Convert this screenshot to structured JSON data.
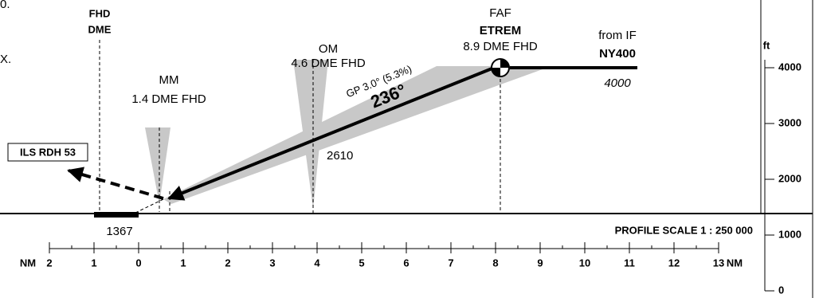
{
  "fragments": [
    "0.",
    "X."
  ],
  "fixes": {
    "fhd": {
      "line1": "FHD",
      "line2": "DME"
    },
    "mm": {
      "name": "MM",
      "dist": "1.4 DME FHD"
    },
    "om": {
      "name": "OM",
      "dist": "4.6 DME FHD",
      "alt": "2610"
    },
    "faf": {
      "label": "FAF",
      "name": "ETREM",
      "dist": "8.9 DME FHD"
    },
    "if": {
      "label": "from IF",
      "name": "NY400",
      "alt": "4000"
    }
  },
  "glidepath": {
    "angle": "GP 3.0° (5.3%)",
    "course": "236°"
  },
  "ils_rdh": "ILS RDH 53",
  "threshold_elev": "1367",
  "scale_note": "PROFILE SCALE 1 : 250 000",
  "nm_scale": {
    "unit": "NM",
    "ticks": [
      "2",
      "1",
      "0",
      "1",
      "2",
      "3",
      "4",
      "5",
      "6",
      "7",
      "8",
      "9",
      "10",
      "11",
      "12",
      "13"
    ]
  },
  "alt_scale": {
    "unit": "ft",
    "ticks": [
      "4000",
      "3000",
      "2000",
      "1000",
      "0"
    ]
  }
}
